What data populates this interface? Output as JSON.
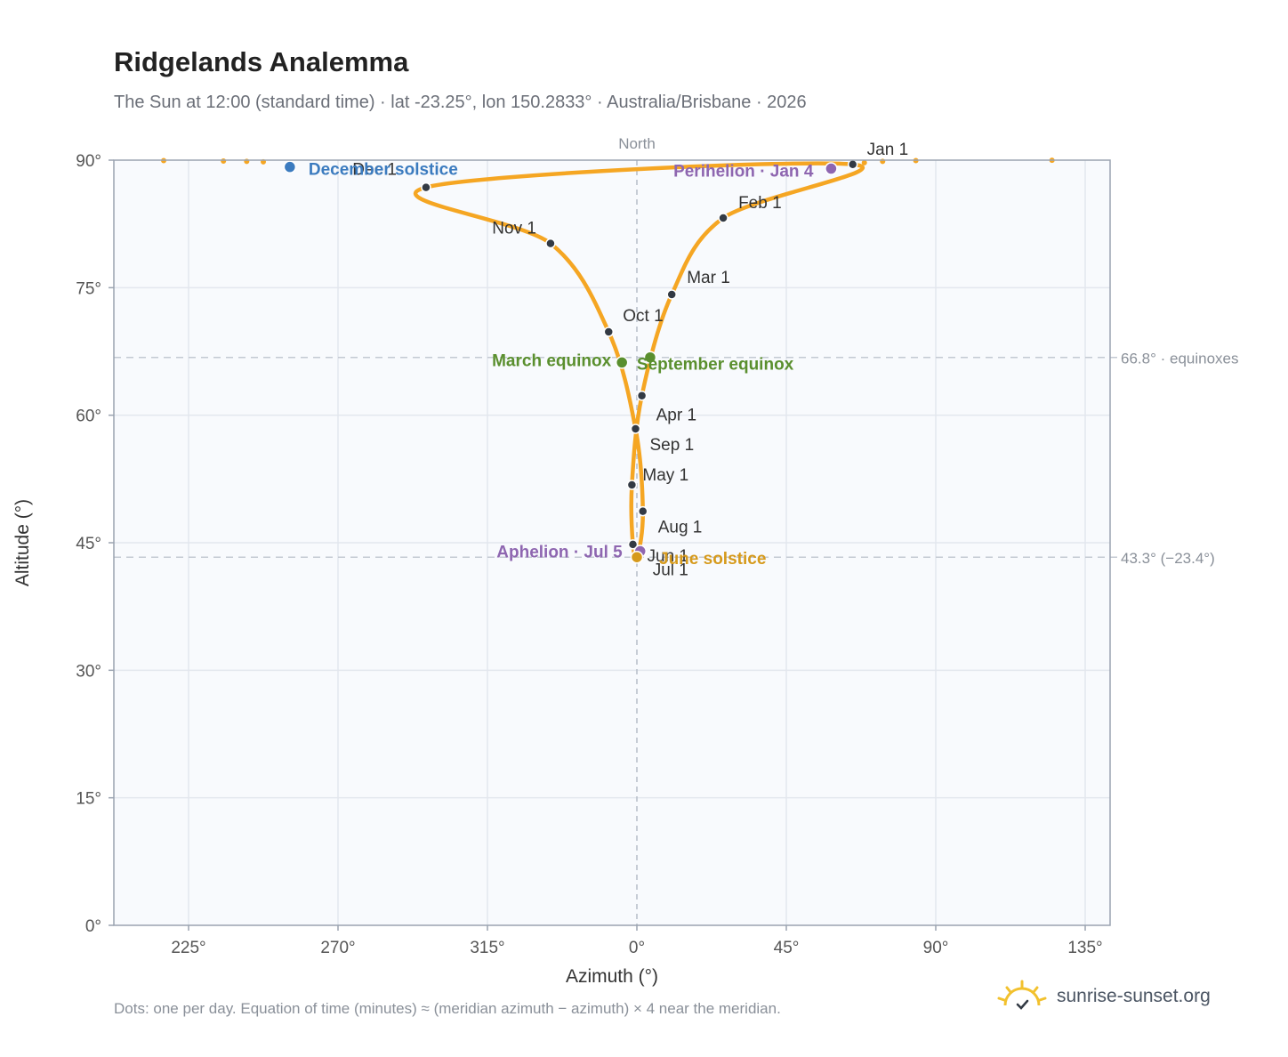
{
  "header": {
    "title": "Ridgelands Analemma",
    "subtitle": "The Sun at 12:00 (standard time) · lat -23.25°, lon 150.2833° · Australia/Brisbane · 2026"
  },
  "footer": {
    "note": "Dots: one per day. Equation of time (minutes) ≈ (meridian azimuth − azimuth) × 4 near the meridian.",
    "brand": "sunrise-sunset.org"
  },
  "colors": {
    "curve": "#f5a623",
    "month_dot": "#333a44",
    "equinox": "#5a8f2e",
    "solstice_dec": "#3b7bbf",
    "solstice_jun": "#d69a1c",
    "apsis": "#8e66b0",
    "plot_bg": "#f8fafd",
    "grid": "#e3e7ee",
    "axis": "#9aa3b0"
  },
  "chart_data": {
    "type": "scatter",
    "title": "Ridgelands Analemma",
    "xlabel": "Azimuth (°)",
    "ylabel": "Altitude (°)",
    "x_ticks": [
      "225°",
      "270°",
      "315°",
      "0°",
      "45°",
      "90°",
      "135°"
    ],
    "y_ticks": [
      "0°",
      "15°",
      "30°",
      "45°",
      "60°",
      "75°",
      "90°"
    ],
    "xlim": [
      202.5,
      142.5
    ],
    "ylim": [
      0,
      90
    ],
    "grid": true,
    "meridian_label": "North",
    "reference_lines": [
      {
        "label": "66.8° · equinoxes",
        "y": 66.8
      },
      {
        "label": "43.3° (−23.4°)",
        "y": 43.3
      }
    ],
    "month_markers": [
      {
        "label": "Jan 1",
        "azimuth": 65.0,
        "altitude": 89.5
      },
      {
        "label": "Feb 1",
        "azimuth": 26.0,
        "altitude": 83.2
      },
      {
        "label": "Mar 1",
        "azimuth": 10.5,
        "altitude": 74.2
      },
      {
        "label": "Apr 1",
        "azimuth": 1.5,
        "altitude": 62.3
      },
      {
        "label": "May 1",
        "azimuth": 358.5,
        "altitude": 51.8
      },
      {
        "label": "Jun 1",
        "azimuth": 358.8,
        "altitude": 44.8
      },
      {
        "label": "Jul 1",
        "azimuth": 0.2,
        "altitude": 43.4
      },
      {
        "label": "Aug 1",
        "azimuth": 1.8,
        "altitude": 48.7
      },
      {
        "label": "Sep 1",
        "azimuth": 359.6,
        "altitude": 58.4
      },
      {
        "label": "Oct 1",
        "azimuth": 351.5,
        "altitude": 69.8
      },
      {
        "label": "Nov 1",
        "azimuth": 334.0,
        "altitude": 80.2
      },
      {
        "label": "Dec 1",
        "azimuth": 296.5,
        "altitude": 86.8
      }
    ],
    "events": [
      {
        "label": "December solstice",
        "azimuth": 255.5,
        "altitude": 89.2,
        "kind": "solstice_dec"
      },
      {
        "label": "Perihelion · Jan 4",
        "azimuth": 58.5,
        "altitude": 89.0,
        "kind": "apsis"
      },
      {
        "label": "March equinox",
        "azimuth": 355.5,
        "altitude": 66.2,
        "kind": "equinox"
      },
      {
        "label": "September equinox",
        "azimuth": 4.0,
        "altitude": 66.8,
        "kind": "equinox"
      },
      {
        "label": "Aphelion · Jul 5",
        "azimuth": 1.0,
        "altitude": 44.0,
        "kind": "apsis"
      },
      {
        "label": "June solstice",
        "azimuth": 0.0,
        "altitude": 43.3,
        "kind": "solstice_jun"
      }
    ],
    "extra_dots": [
      {
        "azimuth": 217.5,
        "altitude": 89.95
      },
      {
        "azimuth": 235.5,
        "altitude": 89.9
      },
      {
        "azimuth": 242.5,
        "altitude": 89.85
      },
      {
        "azimuth": 247.5,
        "altitude": 89.8
      },
      {
        "azimuth": 68.5,
        "altitude": 89.7
      },
      {
        "azimuth": 74.0,
        "altitude": 89.85
      },
      {
        "azimuth": 84.0,
        "altitude": 89.95
      },
      {
        "azimuth": 125.0,
        "altitude": 89.99
      }
    ]
  }
}
